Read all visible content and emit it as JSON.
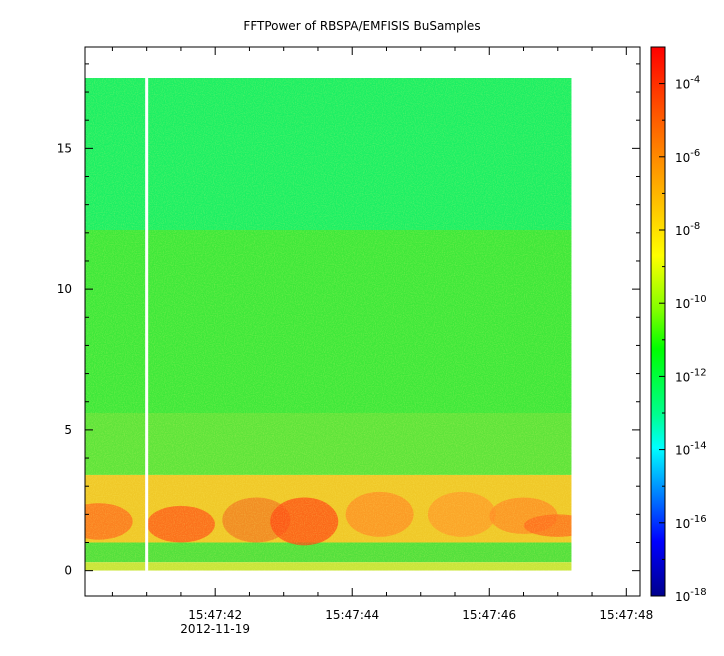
{
  "chart_data": {
    "type": "heatmap",
    "title": "FFTPower of RBSPA/EMFISIS  BuSamples",
    "xlabel": "",
    "ylabel": "",
    "x_date_label": "2012-11-19",
    "x_ticks": [
      "15:47:42",
      "15:47:44",
      "15:47:46",
      "15:47:48"
    ],
    "x_range_seconds": [
      "15:47:40.1",
      "15:47:48.2"
    ],
    "data_x_range": [
      "15:47:40.1",
      "15:47:47.2"
    ],
    "y_ticks": [
      0,
      5,
      10,
      15
    ],
    "ylim": [
      -0.9,
      18.6
    ],
    "data_y_range": [
      0,
      17.5
    ],
    "colorbar": {
      "scale": "log",
      "range": [
        1e-18,
        0.001
      ],
      "tick_labels": [
        {
          "base": "10",
          "exp": "-18"
        },
        {
          "base": "10",
          "exp": "-16"
        },
        {
          "base": "10",
          "exp": "-14"
        },
        {
          "base": "10",
          "exp": "-12"
        },
        {
          "base": "10",
          "exp": "-10"
        },
        {
          "base": "10",
          "exp": "-8"
        },
        {
          "base": "10",
          "exp": "-6"
        },
        {
          "base": "10",
          "exp": "-4"
        }
      ],
      "tick_exponents": [
        -18,
        -16,
        -14,
        -12,
        -10,
        -8,
        -6,
        -4
      ]
    },
    "data_gap_time": "15:47:41.0",
    "grid": false
  }
}
